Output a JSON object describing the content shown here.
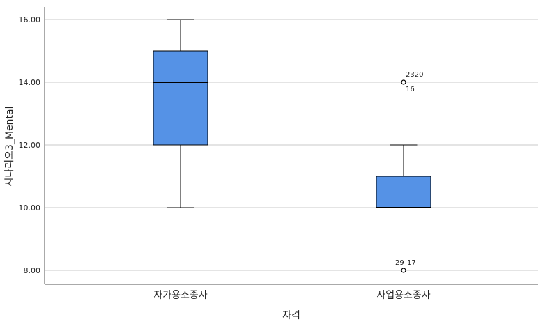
{
  "chart_data": {
    "type": "boxplot",
    "xlabel": "자격",
    "ylabel": "시나리오3_Mental",
    "ylim": [
      7.6,
      16.4
    ],
    "yticks": [
      8,
      10,
      12,
      14,
      16
    ],
    "ytick_labels": [
      "8.00",
      "10.00",
      "12.00",
      "14.00",
      "16.00"
    ],
    "grid": true,
    "box_color": "#5592e6",
    "categories": [
      "자가용조종사",
      "사업용조종사"
    ],
    "boxes": [
      {
        "category": "자가용조종사",
        "whisker_low": 10,
        "q1": 12,
        "median": 14,
        "q3": 15,
        "whisker_high": 16,
        "outliers": []
      },
      {
        "category": "사업용조종사",
        "whisker_low": 10,
        "q1": 10,
        "median": 10,
        "q3": 11,
        "whisker_high": 12,
        "outliers": [
          {
            "value": 14,
            "labels": [
              "2320",
              "16"
            ]
          },
          {
            "value": 8,
            "labels": [
              "29",
              "17"
            ]
          }
        ]
      }
    ]
  }
}
